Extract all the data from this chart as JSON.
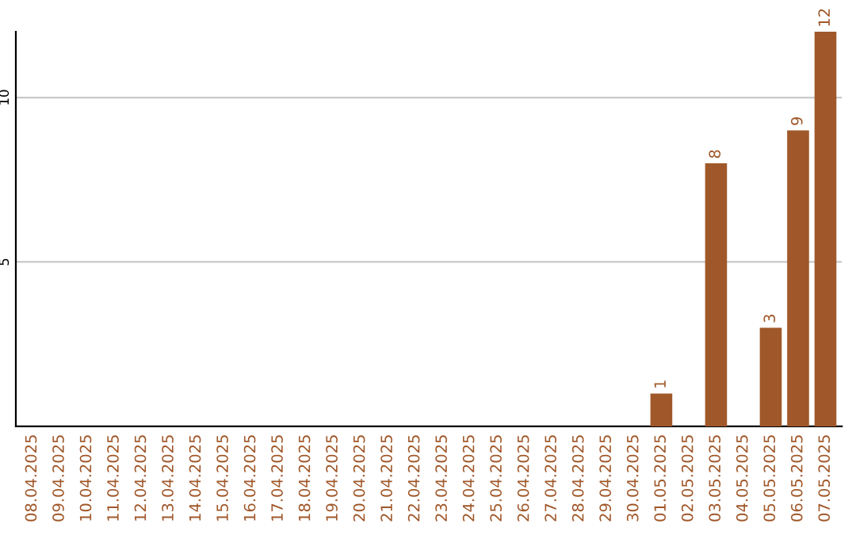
{
  "chart_data": {
    "type": "bar",
    "categories": [
      "08.04.2025",
      "09.04.2025",
      "10.04.2025",
      "11.04.2025",
      "12.04.2025",
      "13.04.2025",
      "14.04.2025",
      "15.04.2025",
      "16.04.2025",
      "17.04.2025",
      "18.04.2025",
      "19.04.2025",
      "20.04.2025",
      "21.04.2025",
      "22.04.2025",
      "23.04.2025",
      "24.04.2025",
      "25.04.2025",
      "26.04.2025",
      "27.04.2025",
      "28.04.2025",
      "29.04.2025",
      "30.04.2025",
      "01.05.2025",
      "02.05.2025",
      "03.05.2025",
      "04.05.2025",
      "05.05.2025",
      "06.05.2025",
      "07.05.2025"
    ],
    "values": [
      0,
      0,
      0,
      0,
      0,
      0,
      0,
      0,
      0,
      0,
      0,
      0,
      0,
      0,
      0,
      0,
      0,
      0,
      0,
      0,
      0,
      0,
      0,
      1,
      0,
      8,
      0,
      3,
      9,
      12
    ],
    "value_labels": [
      null,
      null,
      null,
      null,
      null,
      null,
      null,
      null,
      null,
      null,
      null,
      null,
      null,
      null,
      null,
      null,
      null,
      null,
      null,
      null,
      null,
      null,
      null,
      "1",
      null,
      "8",
      null,
      "3",
      "9",
      "12"
    ],
    "color": "#a0582a",
    "ylim": [
      0,
      12
    ],
    "yticks": [
      5,
      10
    ],
    "grid": "y"
  }
}
